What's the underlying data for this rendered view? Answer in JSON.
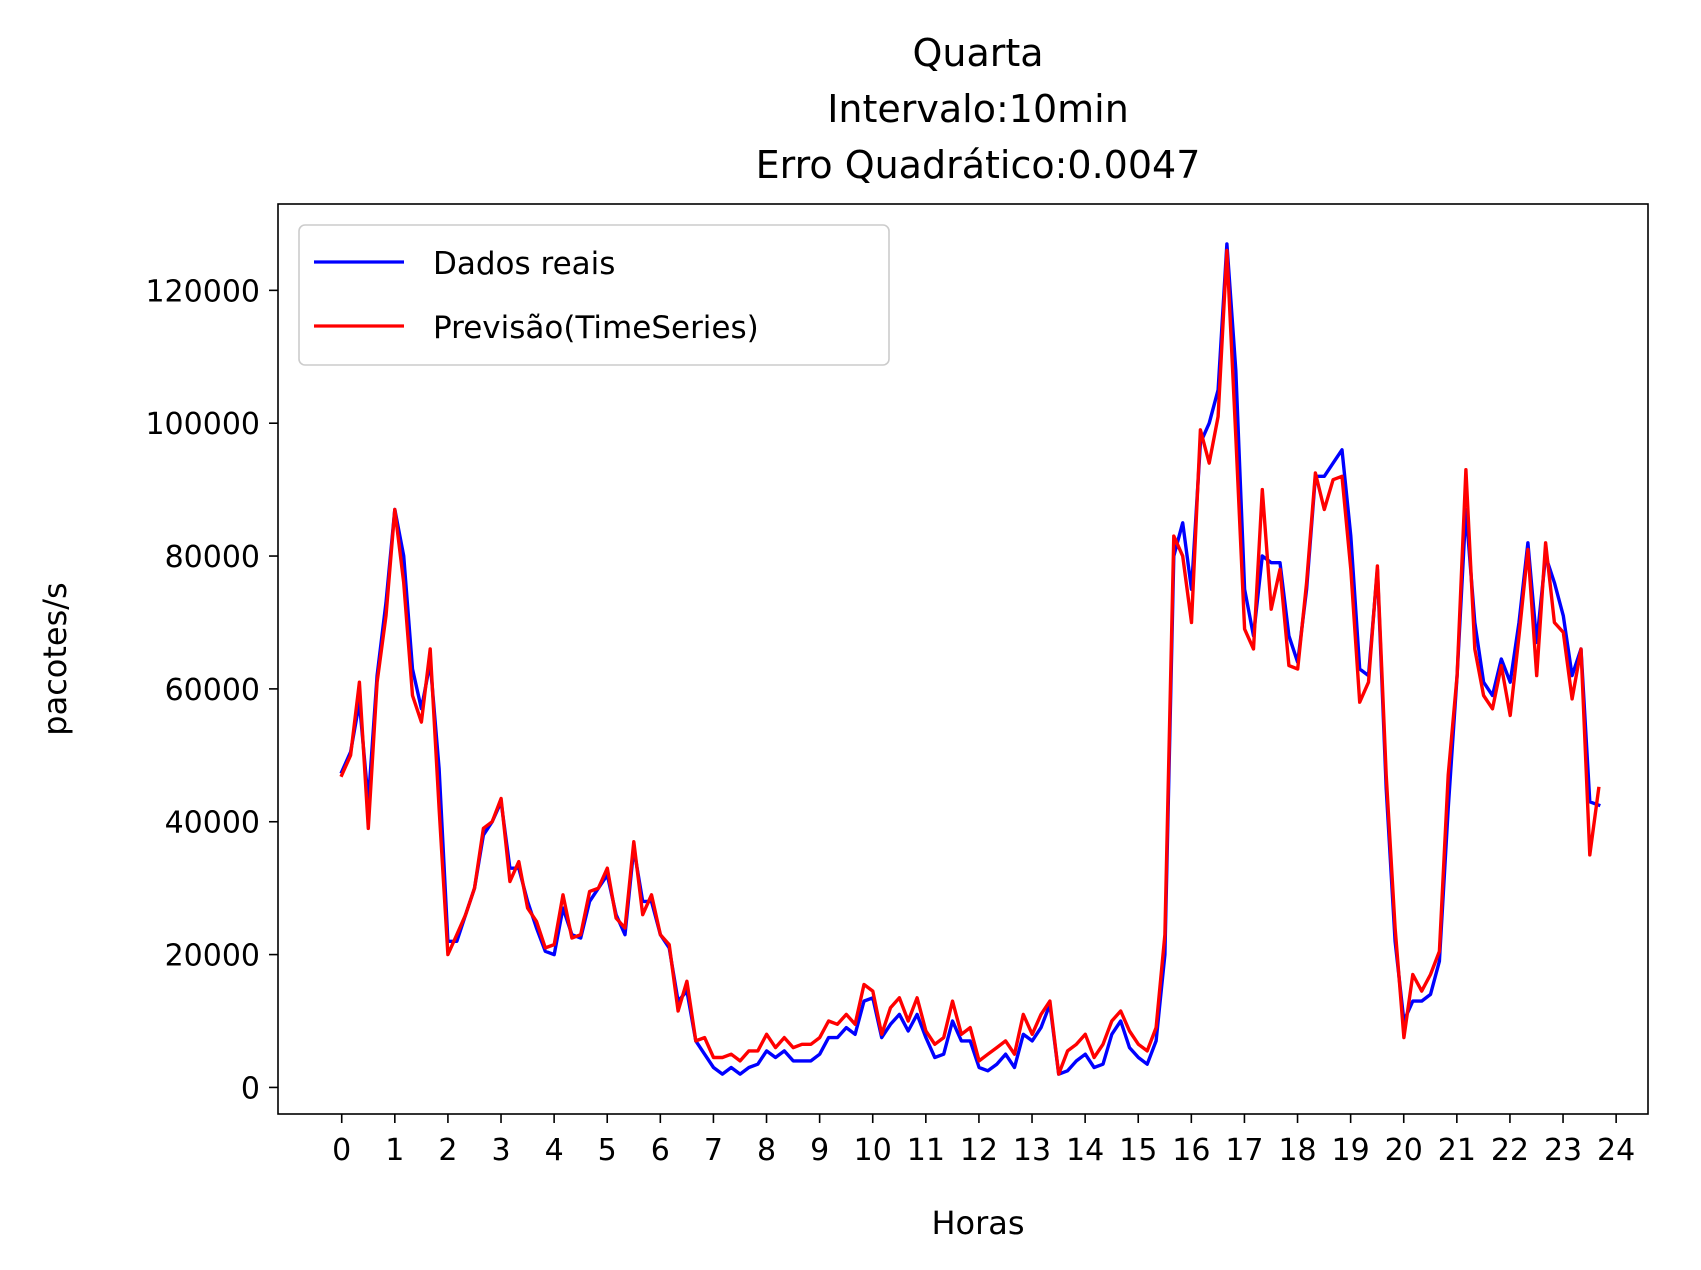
{
  "chart_data": {
    "type": "line",
    "title_lines": [
      "Quarta",
      "Intervalo:10min",
      "Erro Quadrático:0.0047"
    ],
    "xlabel": "Horas",
    "ylabel": "pacotes/s",
    "xlim": [
      -1.2,
      24.6
    ],
    "ylim": [
      -4000,
      133000
    ],
    "xticks": [
      0,
      1,
      2,
      3,
      4,
      5,
      6,
      7,
      8,
      9,
      10,
      11,
      12,
      13,
      14,
      15,
      16,
      17,
      18,
      19,
      20,
      21,
      22,
      23,
      24
    ],
    "xtick_labels": [
      "0",
      "1",
      "2",
      "3",
      "4",
      "5",
      "6",
      "7",
      "8",
      "9",
      "10",
      "11",
      "12",
      "13",
      "14",
      "15",
      "16",
      "17",
      "18",
      "19",
      "20",
      "21",
      "22",
      "23",
      "24"
    ],
    "yticks": [
      0,
      20000,
      40000,
      60000,
      80000,
      100000,
      120000
    ],
    "ytick_labels": [
      "0",
      "20000",
      "40000",
      "60000",
      "80000",
      "100000",
      "120000"
    ],
    "legend_position": "top-left",
    "x_step_hours": 0.1667,
    "series": [
      {
        "name": "Dados reais",
        "color": "#0000ff",
        "values": [
          47500,
          50500,
          58000,
          43000,
          62000,
          73000,
          87000,
          80000,
          63000,
          57000,
          64000,
          48000,
          22000,
          22000,
          26000,
          30000,
          38000,
          40000,
          43000,
          33000,
          33000,
          28000,
          24000,
          20500,
          20000,
          27000,
          23000,
          22500,
          28000,
          30000,
          32000,
          26000,
          23000,
          36000,
          28000,
          28000,
          23000,
          21000,
          13000,
          14500,
          7000,
          5000,
          3000,
          2000,
          3000,
          2000,
          3000,
          3500,
          5500,
          4500,
          5500,
          4000,
          4000,
          4000,
          5000,
          7500,
          7500,
          9000,
          8000,
          13000,
          13500,
          7500,
          9500,
          11000,
          8500,
          11000,
          7500,
          4500,
          5000,
          10000,
          7000,
          7000,
          3000,
          2500,
          3500,
          5000,
          3000,
          8000,
          7000,
          9000,
          12500,
          2000,
          2500,
          4000,
          5000,
          3000,
          3500,
          8000,
          10000,
          6000,
          4500,
          3500,
          7000,
          20000,
          80000,
          85000,
          75000,
          97000,
          100000,
          105000,
          127000,
          108000,
          75000,
          68000,
          80000,
          79000,
          79000,
          68000,
          64000,
          75000,
          92000,
          92000,
          94000,
          96000,
          83000,
          63000,
          62000,
          78000,
          45000,
          22000,
          10000,
          13000,
          13000,
          14000,
          19000,
          42000,
          62000,
          87000,
          70000,
          61000,
          59000,
          64500,
          61000,
          70000,
          82000,
          67000,
          80000,
          76000,
          71000,
          62000,
          66000,
          43000,
          42500
        ]
      },
      {
        "name": "Previsão(TimeSeries)",
        "color": "#ff0000",
        "values": [
          47000,
          50000,
          61000,
          39000,
          61000,
          71000,
          87000,
          76000,
          59000,
          55000,
          66000,
          42000,
          20000,
          23000,
          26000,
          30000,
          39000,
          40000,
          43500,
          31000,
          34000,
          27000,
          25000,
          21000,
          21500,
          29000,
          22500,
          23000,
          29500,
          30000,
          33000,
          25500,
          24000,
          37000,
          26000,
          29000,
          23000,
          21500,
          11500,
          16000,
          7000,
          7500,
          4500,
          4500,
          5000,
          4000,
          5500,
          5500,
          8000,
          6000,
          7500,
          6000,
          6500,
          6500,
          7500,
          10000,
          9500,
          11000,
          9500,
          15500,
          14500,
          8000,
          12000,
          13500,
          10000,
          13500,
          8500,
          6500,
          7500,
          13000,
          8000,
          9000,
          4000,
          5000,
          6000,
          7000,
          5000,
          11000,
          8000,
          11000,
          13000,
          2000,
          5500,
          6500,
          8000,
          4500,
          6500,
          10000,
          11500,
          8500,
          6500,
          5500,
          9000,
          23000,
          83000,
          80000,
          70000,
          99000,
          94000,
          101000,
          126000,
          98000,
          69000,
          66000,
          90000,
          72000,
          78000,
          63500,
          63000,
          76000,
          92500,
          87000,
          91500,
          92000,
          78000,
          58000,
          61000,
          78500,
          47000,
          24000,
          7500,
          17000,
          14500,
          17000,
          20500,
          47000,
          62000,
          93000,
          66000,
          59000,
          57000,
          63500,
          56000,
          68000,
          81000,
          62000,
          82000,
          70000,
          68500,
          58500,
          66000,
          35000,
          45000
        ]
      }
    ]
  }
}
